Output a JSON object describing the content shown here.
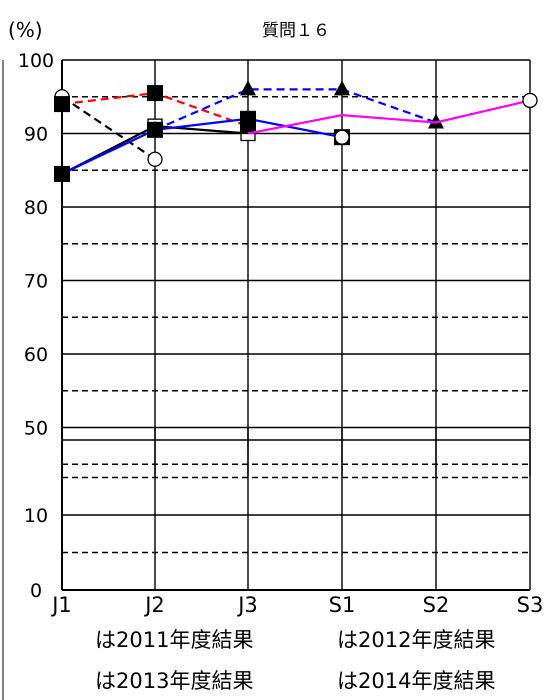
{
  "chart_data": {
    "type": "line",
    "title": "質問１６",
    "ylabel": "(%)",
    "xlabel": "",
    "categories": [
      "J1",
      "J2",
      "J3",
      "S1",
      "S2",
      "S3"
    ],
    "y_tick_labels": [
      "0",
      "10",
      "50",
      "60",
      "70",
      "80",
      "90",
      "100"
    ],
    "y_axis_note": "broken axis: 0-20 then 45-100",
    "grid": true,
    "series": [
      {
        "name": "2011年度結果",
        "color": "#000000",
        "dash": true,
        "marker": "circle-open",
        "values": [
          95,
          86.5,
          null,
          null,
          null,
          null
        ]
      },
      {
        "name": "2011年度結果",
        "color": "#000000",
        "dash": false,
        "marker": "square-open",
        "values": [
          84.5,
          91,
          90,
          null,
          null,
          null
        ]
      },
      {
        "name": "2012年度結果",
        "color": "#ff0000",
        "dash": true,
        "marker": "square-filled",
        "values": [
          94,
          95.5,
          91,
          null,
          null,
          null
        ]
      },
      {
        "name": "2013年度結果",
        "color": "#0000ff",
        "dash": true,
        "marker": "triangle-filled",
        "values": [
          null,
          90.5,
          96,
          96,
          91.5,
          null
        ]
      },
      {
        "name": "2013年度結果",
        "color": "#0000ff",
        "dash": false,
        "marker": "square-filled",
        "values": [
          84.5,
          90.5,
          92,
          89.5,
          null,
          null
        ]
      },
      {
        "name": "2014年度結果",
        "color": "#ff00ff",
        "dash": false,
        "marker": "none",
        "values": [
          null,
          null,
          90,
          92.5,
          91.5,
          94.5
        ]
      }
    ],
    "legend": [
      {
        "text": "は2011年度結果"
      },
      {
        "text": "は2012年度結果"
      },
      {
        "text": "は2013年度結果"
      },
      {
        "text": "は2014年度結果"
      }
    ]
  }
}
